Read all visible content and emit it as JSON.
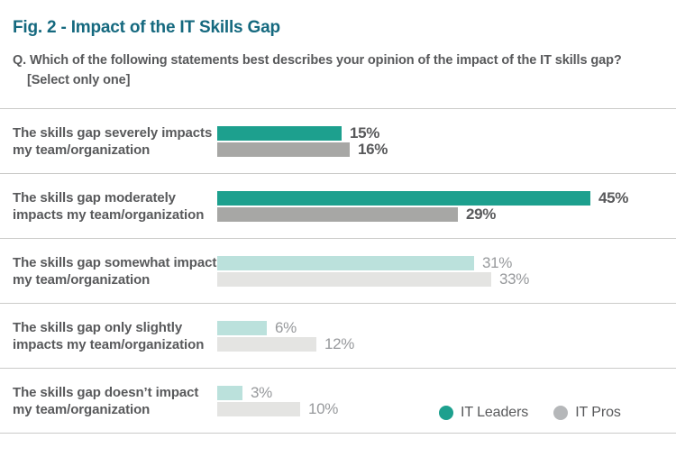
{
  "figure": {
    "title": "Fig. 2 - Impact of the IT Skills Gap",
    "question_prefix": "Q.",
    "question_text": "Which of the following statements best describes your opinion of the impact of the IT skills gap?",
    "question_instruction": "[Select only one]"
  },
  "colors": {
    "title": "#15697F",
    "text_dark": "#58595B",
    "text_light": "#97999C",
    "divider": "#CBCBC9",
    "it_leaders_strong": "#1DA08E",
    "it_leaders_light": "#BBE1DC",
    "it_pros_strong": "#A7A7A5",
    "it_pros_light": "#E4E4E2",
    "legend_pros_dot": "#B5B7B9"
  },
  "legend": {
    "items": [
      {
        "name": "it-leaders",
        "label": "IT Leaders",
        "color": "#1DA08E"
      },
      {
        "name": "it-pros",
        "label": "IT Pros",
        "color": "#B5B7B9"
      }
    ]
  },
  "chart_data": {
    "type": "bar",
    "orientation": "horizontal",
    "title": "Fig. 2 - Impact of the IT Skills Gap",
    "categories": [
      "The skills gap severely impacts my team/organization",
      "The skills gap moderately impacts my team/organization",
      "The skills gap somewhat impacts my team/organization",
      "The skills gap only slightly impacts my team/organization",
      "The skills gap doesn’t impact my team/organization"
    ],
    "category_lines": [
      [
        "The skills gap severely impacts",
        "my team/organization"
      ],
      [
        "The skills gap moderately",
        "impacts my team/organization"
      ],
      [
        "The skills gap somewhat impacts",
        "my team/organization"
      ],
      [
        "The skills gap only slightly",
        "impacts my team/organization"
      ],
      [
        "The skills gap doesn’t impact",
        "my team/organization"
      ]
    ],
    "series": [
      {
        "name": "IT Leaders",
        "values": [
          15,
          45,
          31,
          6,
          3
        ]
      },
      {
        "name": "IT Pros",
        "values": [
          16,
          29,
          33,
          12,
          10
        ]
      }
    ],
    "value_suffix": "%",
    "xlim": [
      0,
      50
    ],
    "emphasized_rows": [
      0,
      1
    ],
    "grid": false,
    "legend_position": "bottom-right"
  }
}
